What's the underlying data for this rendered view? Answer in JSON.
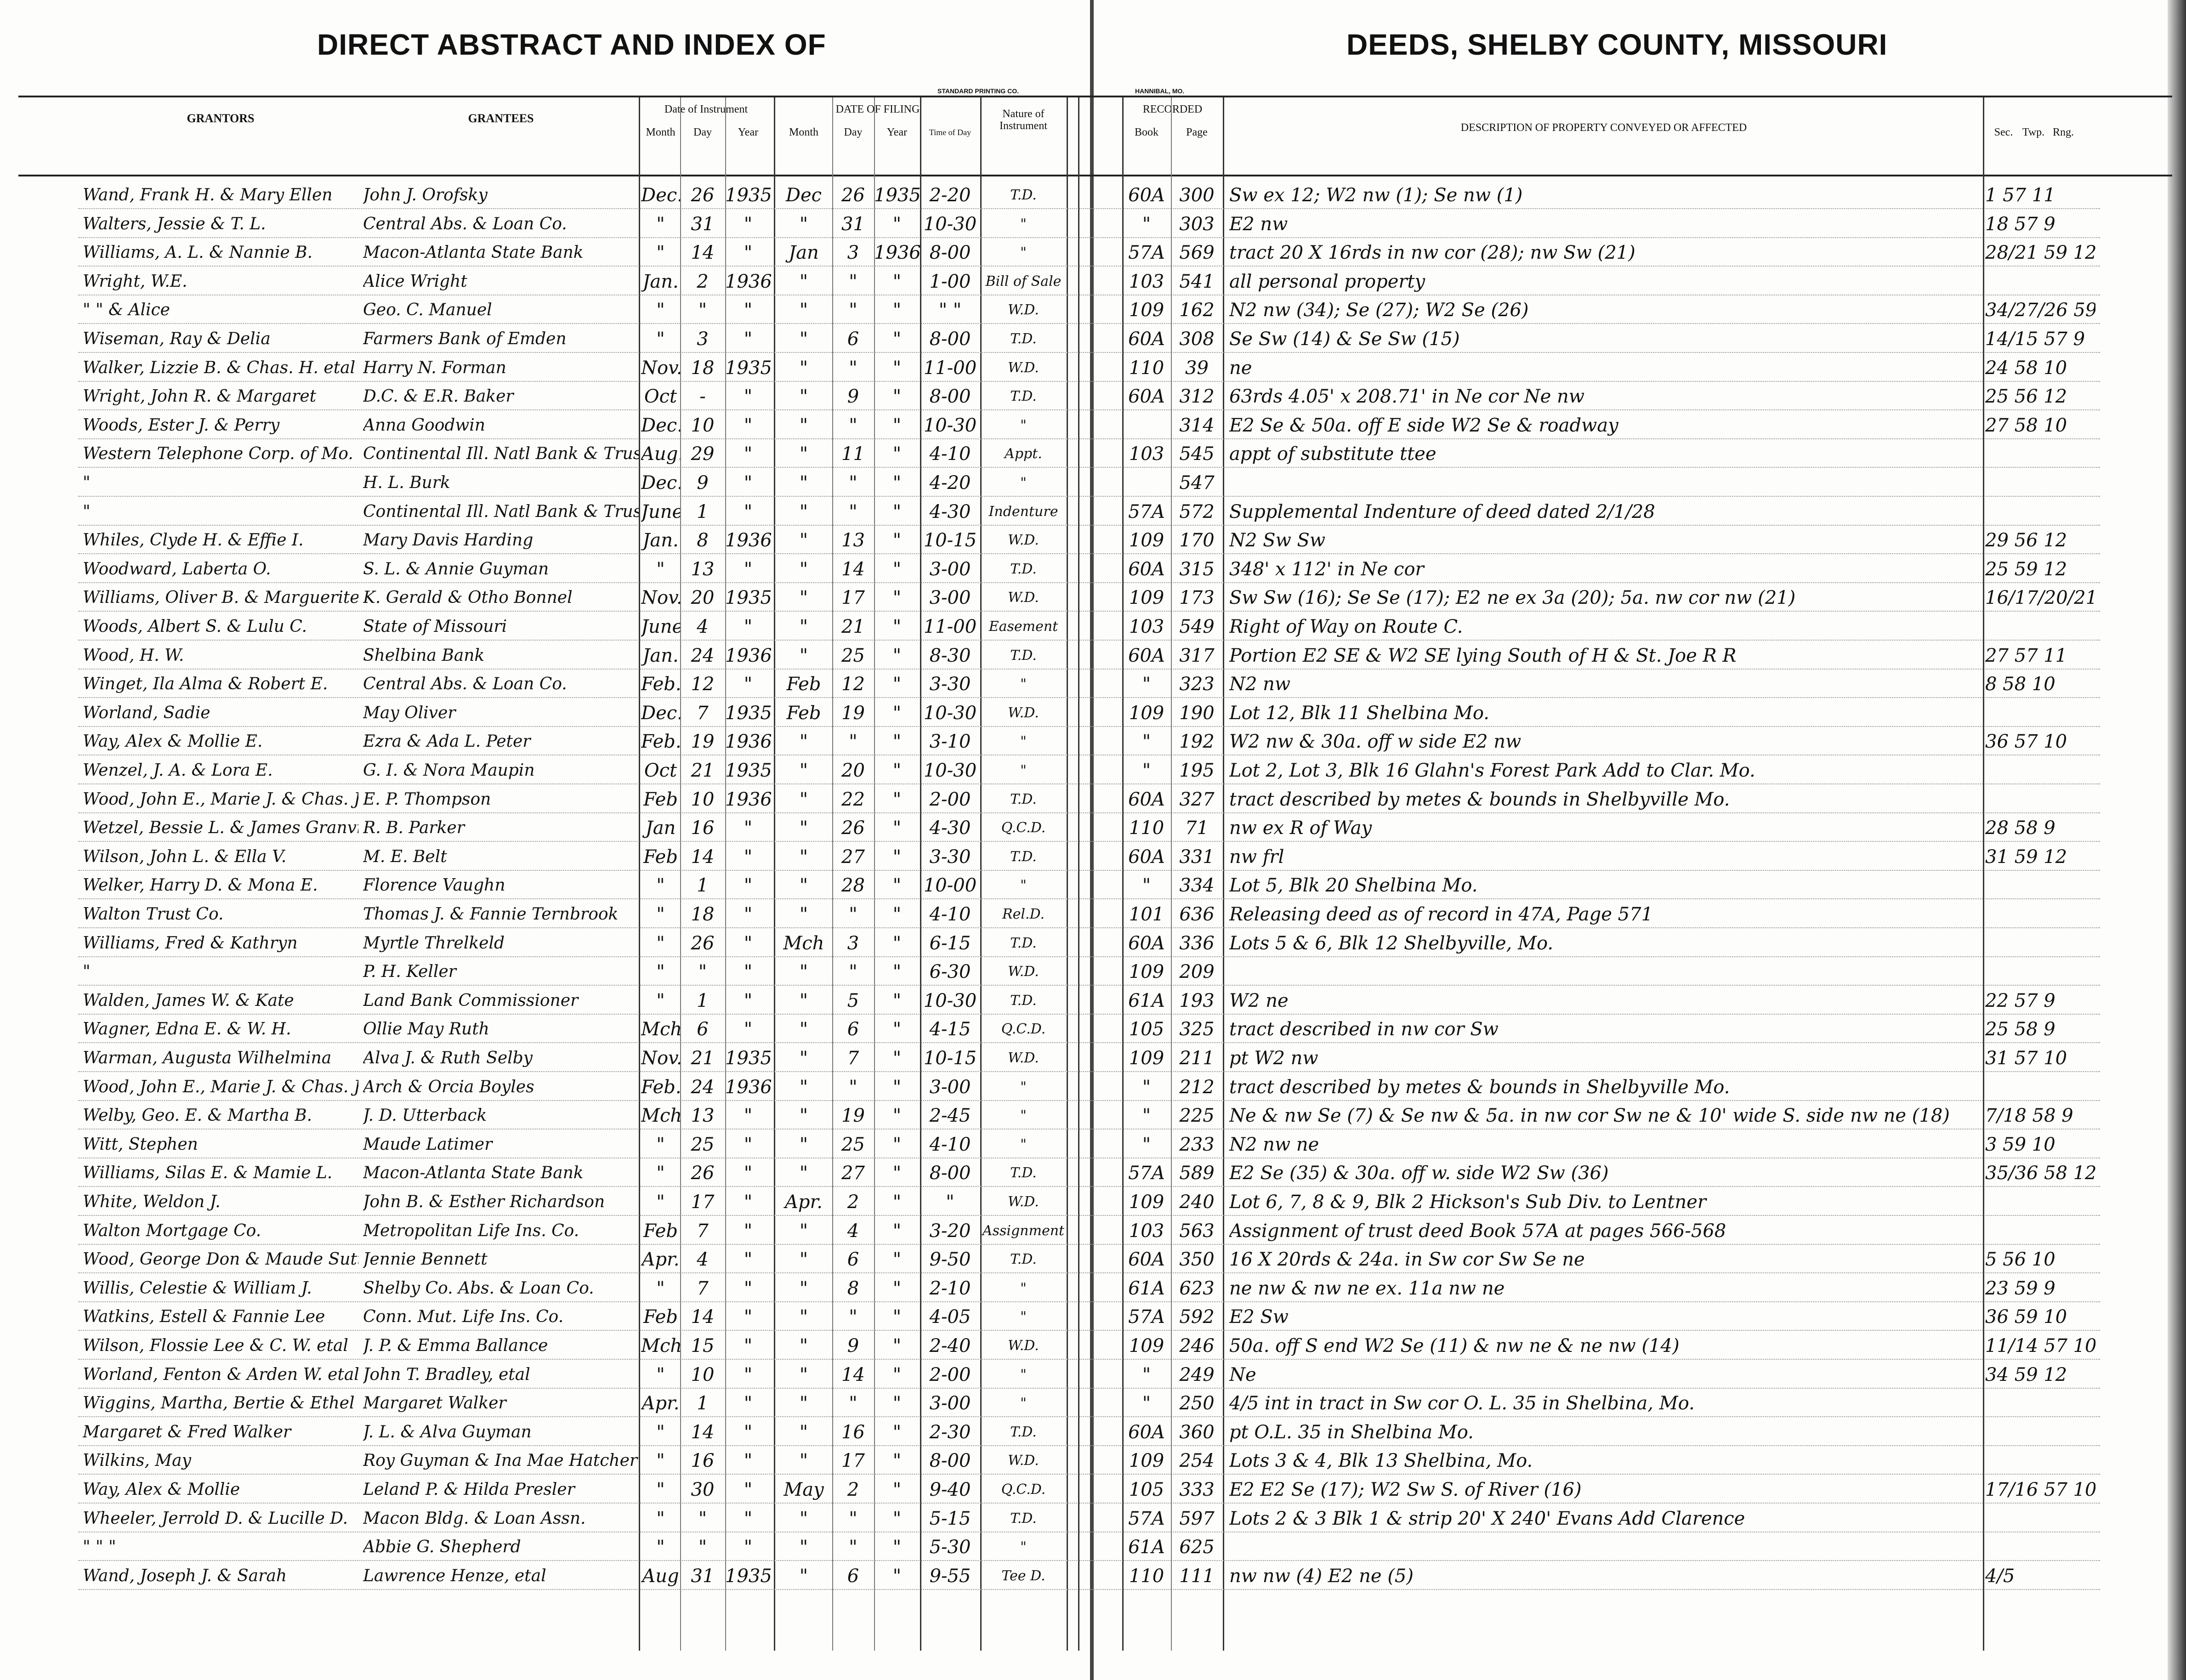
{
  "header": {
    "title_left": "DIRECT ABSTRACT AND INDEX OF",
    "title_right": "DEEDS, SHELBY COUNTY, MISSOURI",
    "printer_left": "STANDARD PRINTING CO.",
    "printer_right": "HANNIBAL, MO."
  },
  "columns": {
    "grantors": "GRANTORS",
    "grantees": "GRANTEES",
    "date_of_instrument": "Date of Instrument",
    "date_of_filing": "DATE OF FILING",
    "month": "Month",
    "day": "Day",
    "year": "Year",
    "time_of_day": "Time of Day",
    "nature": "Nature of Instrument",
    "recorded": "RECORDED",
    "book": "Book",
    "page": "Page",
    "description": "DESCRIPTION OF PROPERTY CONVEYED OR AFFECTED",
    "sec": "Sec.",
    "twp": "Twp.",
    "rng": "Rng."
  },
  "rows": [
    [
      "Wand, Frank H. & Mary Ellen",
      "John J. Orofsky",
      "Dec.",
      "26",
      "1935",
      "Dec",
      "26",
      "1935",
      "2-20",
      "T.D.",
      "60A",
      "300",
      "Sw ex 12; W2 nw (1); Se nw (1)",
      "1 57 11"
    ],
    [
      "Walters, Jessie & T. L.",
      "Central Abs. & Loan Co.",
      "\"",
      "31",
      "\"",
      "\"",
      "31",
      "\"",
      "10-30",
      "\"",
      "\"",
      "303",
      "E2 nw",
      "18 57 9"
    ],
    [
      "Williams, A. L. & Nannie B.",
      "Macon-Atlanta State Bank",
      "\"",
      "14",
      "\"",
      "Jan",
      "3",
      "1936",
      "8-00",
      "\"",
      "57A",
      "569",
      "tract 20 X 16rds in nw cor (28); nw Sw (21)",
      "28/21 59 12"
    ],
    [
      "Wright, W.E.",
      "Alice Wright",
      "Jan.",
      "2",
      "1936",
      "\"",
      "\"",
      "\"",
      "1-00",
      "Bill of Sale",
      "103",
      "541",
      "all personal property",
      ""
    ],
    [
      "\" \" & Alice",
      "Geo. C. Manuel",
      "\"",
      "\"",
      "\"",
      "\"",
      "\"",
      "\"",
      "\" \"",
      "W.D.",
      "109",
      "162",
      "N2 nw (34); Se (27); W2 Se (26)",
      "34/27/26 59 12"
    ],
    [
      "Wiseman, Ray & Delia",
      "Farmers Bank of Emden",
      "\"",
      "3",
      "\"",
      "\"",
      "6",
      "\"",
      "8-00",
      "T.D.",
      "60A",
      "308",
      "Se Sw (14) & Se Sw (15)",
      "14/15 57 9"
    ],
    [
      "Walker, Lizzie B. & Chas. H. etal",
      "Harry N. Forman",
      "Nov.",
      "18",
      "1935",
      "\"",
      "\"",
      "\"",
      "11-00",
      "W.D.",
      "110",
      "39",
      "ne",
      "24 58 10"
    ],
    [
      "Wright, John R. & Margaret",
      "D.C. & E.R. Baker",
      "Oct",
      "-",
      "\"",
      "\"",
      "9",
      "\"",
      "8-00",
      "T.D.",
      "60A",
      "312",
      "63rds 4.05' x 208.71' in Ne cor Ne nw",
      "25 56 12"
    ],
    [
      "Woods, Ester J. & Perry",
      "Anna Goodwin",
      "Dec.",
      "10",
      "\"",
      "\"",
      "\"",
      "\"",
      "10-30",
      "\"",
      "",
      "314",
      "E2 Se & 50a. off E side W2 Se & roadway",
      "27 58 10"
    ],
    [
      "Western Telephone Corp. of Mo.",
      "Continental Ill. Natl Bank & Trust",
      "Aug.",
      "29",
      "\"",
      "\"",
      "11",
      "\"",
      "4-10",
      "Appt.",
      "103",
      "545",
      "appt of substitute ttee",
      ""
    ],
    [
      "\"",
      "H. L. Burk",
      "Dec.",
      "9",
      "\"",
      "\"",
      "\"",
      "\"",
      "4-20",
      "\"",
      "",
      "547",
      "",
      ""
    ],
    [
      "\"",
      "Continental Ill. Natl Bank & Trust",
      "June",
      "1",
      "\"",
      "\"",
      "\"",
      "\"",
      "4-30",
      "Indenture",
      "57A",
      "572",
      "Supplemental Indenture of deed dated 2/1/28",
      ""
    ],
    [
      "Whiles, Clyde H. & Effie I.",
      "Mary Davis Harding",
      "Jan.",
      "8",
      "1936",
      "\"",
      "13",
      "\"",
      "10-15",
      "W.D.",
      "109",
      "170",
      "N2 Sw Sw",
      "29 56 12"
    ],
    [
      "Woodward, Laberta O.",
      "S. L. & Annie Guyman",
      "\"",
      "13",
      "\"",
      "\"",
      "14",
      "\"",
      "3-00",
      "T.D.",
      "60A",
      "315",
      "348' x 112' in Ne cor",
      "25 59 12"
    ],
    [
      "Williams, Oliver B. & Marguerite",
      "K. Gerald & Otho Bonnel",
      "Nov.",
      "20",
      "1935",
      "\"",
      "17",
      "\"",
      "3-00",
      "W.D.",
      "109",
      "173",
      "Sw Sw (16); Se Se (17); E2 ne ex 3a (20); 5a. nw cor nw (21)",
      "16/17/20/21 59 9"
    ],
    [
      "Woods, Albert S. & Lulu C.",
      "State of Missouri",
      "June",
      "4",
      "\"",
      "\"",
      "21",
      "\"",
      "11-00",
      "Easement",
      "103",
      "549",
      "Right of Way on Route C.",
      ""
    ],
    [
      "Wood, H. W.",
      "Shelbina Bank",
      "Jan.",
      "24",
      "1936",
      "\"",
      "25",
      "\"",
      "8-30",
      "T.D.",
      "60A",
      "317",
      "Portion E2 SE & W2 SE lying South of H & St. Joe R R",
      "27 57 11"
    ],
    [
      "Winget, Ila Alma & Robert E.",
      "Central Abs. & Loan Co.",
      "Feb.",
      "12",
      "\"",
      "Feb",
      "12",
      "\"",
      "3-30",
      "\"",
      "\"",
      "323",
      "N2 nw",
      "8 58 10"
    ],
    [
      "Worland, Sadie",
      "May Oliver",
      "Dec.",
      "7",
      "1935",
      "Feb",
      "19",
      "\"",
      "10-30",
      "W.D.",
      "109",
      "190",
      "Lot 12, Blk 11 Shelbina Mo.",
      ""
    ],
    [
      "Way, Alex & Mollie E.",
      "Ezra & Ada L. Peter",
      "Feb.",
      "19",
      "1936",
      "\"",
      "\"",
      "\"",
      "3-10",
      "\"",
      "\"",
      "192",
      "W2 nw & 30a. off w side E2 nw",
      "36 57 10"
    ],
    [
      "Wenzel, J. A. & Lora E.",
      "G. I. & Nora Maupin",
      "Oct",
      "21",
      "1935",
      "\"",
      "20",
      "\"",
      "10-30",
      "\"",
      "\"",
      "195",
      "Lot 2, Lot 3, Blk 16 Glahn's Forest Park Add to Clar. Mo.",
      ""
    ],
    [
      "Wood, John E., Marie J. & Chas. J. Allmon",
      "E. P. Thompson",
      "Feb",
      "10",
      "1936",
      "\"",
      "22",
      "\"",
      "2-00",
      "T.D.",
      "60A",
      "327",
      "tract described by metes & bounds in Shelbyville Mo.",
      ""
    ],
    [
      "Wetzel, Bessie L. & James Granville",
      "R. B. Parker",
      "Jan",
      "16",
      "\"",
      "\"",
      "26",
      "\"",
      "4-30",
      "Q.C.D.",
      "110",
      "71",
      "nw ex R of Way",
      "28 58 9"
    ],
    [
      "Wilson, John L. & Ella V.",
      "M. E. Belt",
      "Feb",
      "14",
      "\"",
      "\"",
      "27",
      "\"",
      "3-30",
      "T.D.",
      "60A",
      "331",
      "nw frl",
      "31 59 12"
    ],
    [
      "Welker, Harry D. & Mona E.",
      "Florence Vaughn",
      "\"",
      "1",
      "\"",
      "\"",
      "28",
      "\"",
      "10-00",
      "\"",
      "\"",
      "334",
      "Lot 5, Blk 20 Shelbina Mo.",
      ""
    ],
    [
      "Walton Trust Co.",
      "Thomas J. & Fannie Ternbrook",
      "\"",
      "18",
      "\"",
      "\"",
      "\"",
      "\"",
      "4-10",
      "Rel.D.",
      "101",
      "636",
      "Releasing deed as of record in 47A, Page 571",
      ""
    ],
    [
      "Williams, Fred & Kathryn",
      "Myrtle Threlkeld",
      "\"",
      "26",
      "\"",
      "Mch",
      "3",
      "\"",
      "6-15",
      "T.D.",
      "60A",
      "336",
      "Lots 5 & 6, Blk 12 Shelbyville, Mo.",
      ""
    ],
    [
      "\"",
      "P. H. Keller",
      "\"",
      "\"",
      "\"",
      "\"",
      "\"",
      "\"",
      "6-30",
      "W.D.",
      "109",
      "209",
      "",
      ""
    ],
    [
      "Walden, James W. & Kate",
      "Land Bank Commissioner",
      "\"",
      "1",
      "\"",
      "\"",
      "5",
      "\"",
      "10-30",
      "T.D.",
      "61A",
      "193",
      "W2 ne",
      "22 57 9"
    ],
    [
      "Wagner, Edna E. & W. H.",
      "Ollie May Ruth",
      "Mch.",
      "6",
      "\"",
      "\"",
      "6",
      "\"",
      "4-15",
      "Q.C.D.",
      "105",
      "325",
      "tract described in nw cor Sw",
      "25 58 9"
    ],
    [
      "Warman, Augusta Wilhelmina",
      "Alva J. & Ruth Selby",
      "Nov.",
      "21",
      "1935",
      "\"",
      "7",
      "\"",
      "10-15",
      "W.D.",
      "109",
      "211",
      "pt W2 nw",
      "31 57 10"
    ],
    [
      "Wood, John E., Marie J. & Chas. J. Allmon",
      "Arch & Orcia Boyles",
      "Feb.",
      "24",
      "1936",
      "\"",
      "\"",
      "\"",
      "3-00",
      "\"",
      "\"",
      "212",
      "tract described by metes & bounds in Shelbyville Mo.",
      ""
    ],
    [
      "Welby, Geo. E. & Martha B.",
      "J. D. Utterback",
      "Mch",
      "13",
      "\"",
      "\"",
      "19",
      "\"",
      "2-45",
      "\"",
      "\"",
      "225",
      "Ne & nw Se (7) & Se nw & 5a. in nw cor Sw ne & 10' wide S. side nw ne (18)",
      "7/18 58 9"
    ],
    [
      "Witt, Stephen",
      "Maude Latimer",
      "\"",
      "25",
      "\"",
      "\"",
      "25",
      "\"",
      "4-10",
      "\"",
      "\"",
      "233",
      "N2 nw ne",
      "3 59 10"
    ],
    [
      "Williams, Silas E. & Mamie L.",
      "Macon-Atlanta State Bank",
      "\"",
      "26",
      "\"",
      "\"",
      "27",
      "\"",
      "8-00",
      "T.D.",
      "57A",
      "589",
      "E2 Se (35) & 30a. off w. side W2 Sw (36)",
      "35/36 58 12"
    ],
    [
      "White, Weldon J.",
      "John B. & Esther Richardson",
      "\"",
      "17",
      "\"",
      "Apr.",
      "2",
      "\"",
      "\"",
      "W.D.",
      "109",
      "240",
      "Lot 6, 7, 8 & 9, Blk 2 Hickson's Sub Div. to Lentner",
      ""
    ],
    [
      "Walton Mortgage Co.",
      "Metropolitan Life Ins. Co.",
      "Feb",
      "7",
      "\"",
      "\"",
      "4",
      "\"",
      "3-20",
      "Assignment",
      "103",
      "563",
      "Assignment of trust deed Book 57A at pages 566-568",
      ""
    ],
    [
      "Wood, George Don & Maude Suttle",
      "Jennie Bennett",
      "Apr.",
      "4",
      "\"",
      "\"",
      "6",
      "\"",
      "9-50",
      "T.D.",
      "60A",
      "350",
      "16 X 20rds & 24a. in Sw cor Sw Se ne",
      "5 56 10"
    ],
    [
      "Willis, Celestie & William J.",
      "Shelby Co. Abs. & Loan Co.",
      "\"",
      "7",
      "\"",
      "\"",
      "8",
      "\"",
      "2-10",
      "\"",
      "61A",
      "623",
      "ne nw & nw ne ex. 11a nw ne",
      "23 59 9"
    ],
    [
      "Watkins, Estell & Fannie Lee",
      "Conn. Mut. Life Ins. Co.",
      "Feb",
      "14",
      "\"",
      "\"",
      "\"",
      "\"",
      "4-05",
      "\"",
      "57A",
      "592",
      "E2 Sw",
      "36 59 10"
    ],
    [
      "Wilson, Flossie Lee & C. W. etal",
      "J. P. & Emma Ballance",
      "Mch",
      "15",
      "\"",
      "\"",
      "9",
      "\"",
      "2-40",
      "W.D.",
      "109",
      "246",
      "50a. off S end W2 Se (11) & nw ne & ne nw (14)",
      "11/14 57 10"
    ],
    [
      "Worland, Fenton & Arden W. etal",
      "John T. Bradley, etal",
      "\"",
      "10",
      "\"",
      "\"",
      "14",
      "\"",
      "2-00",
      "\"",
      "\"",
      "249",
      "Ne",
      "34 59 12"
    ],
    [
      "Wiggins, Martha, Bertie & Ethel P.",
      "Margaret Walker",
      "Apr.",
      "1",
      "\"",
      "\"",
      "\"",
      "\"",
      "3-00",
      "\"",
      "\"",
      "250",
      "4/5 int in tract in Sw cor O. L. 35 in Shelbina, Mo.",
      ""
    ],
    [
      "Margaret & Fred Walker",
      "J. L. & Alva Guyman",
      "\"",
      "14",
      "\"",
      "\"",
      "16",
      "\"",
      "2-30",
      "T.D.",
      "60A",
      "360",
      "pt O.L. 35 in Shelbina Mo.",
      ""
    ],
    [
      "Wilkins, May",
      "Roy Guyman & Ina Mae Hatcher",
      "\"",
      "16",
      "\"",
      "\"",
      "17",
      "\"",
      "8-00",
      "W.D.",
      "109",
      "254",
      "Lots 3 & 4, Blk 13 Shelbina, Mo.",
      ""
    ],
    [
      "Way, Alex & Mollie",
      "Leland P. & Hilda Presler",
      "\"",
      "30",
      "\"",
      "May",
      "2",
      "\"",
      "9-40",
      "Q.C.D.",
      "105",
      "333",
      "E2 E2 Se (17); W2 Sw S. of River (16)",
      "17/16 57 10"
    ],
    [
      "Wheeler, Jerrold D. & Lucille D.",
      "Macon Bldg. & Loan Assn.",
      "\"",
      "\"",
      "\"",
      "\"",
      "\"",
      "\"",
      "5-15",
      "T.D.",
      "57A",
      "597",
      "Lots 2 & 3 Blk 1 & strip 20' X 240' Evans Add Clarence",
      ""
    ],
    [
      "\" \" \"",
      "Abbie G. Shepherd",
      "\"",
      "\"",
      "\"",
      "\"",
      "\"",
      "\"",
      "5-30",
      "\"",
      "61A",
      "625",
      "",
      ""
    ],
    [
      "Wand, Joseph J. & Sarah",
      "Lawrence Henze, etal",
      "Aug",
      "31",
      "1935",
      "\"",
      "6",
      "\"",
      "9-55",
      "Tee D.",
      "110",
      "111",
      "nw nw (4) E2 ne (5)",
      "4/5"
    ]
  ]
}
